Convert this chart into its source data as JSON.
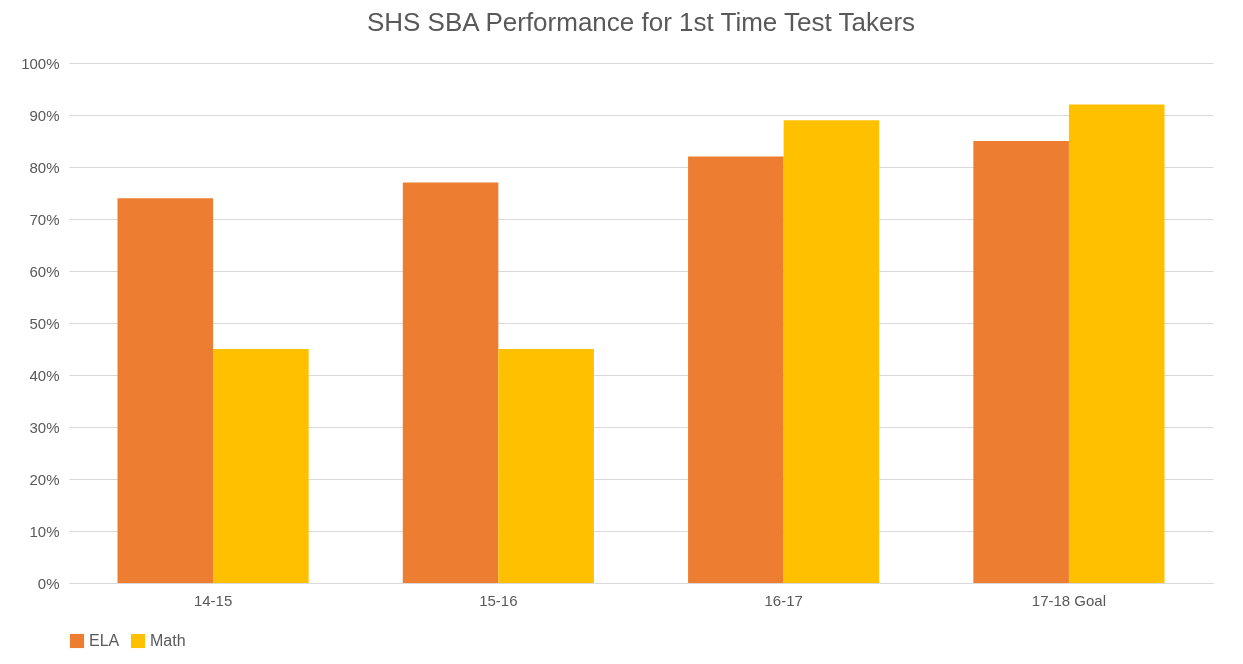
{
  "chart_data": {
    "type": "bar",
    "title": "SHS SBA Performance for 1st Time Test Takers",
    "categories": [
      "14-15",
      "15-16",
      "16-17",
      "17-18 Goal"
    ],
    "series": [
      {
        "name": "ELA",
        "color": "#ed7d31",
        "values": [
          74,
          77,
          82,
          85
        ]
      },
      {
        "name": "Math",
        "color": "#ffc000",
        "values": [
          45,
          45,
          89,
          92
        ]
      }
    ],
    "ylim": [
      0,
      100
    ],
    "yticks": [
      {
        "value": 0,
        "label": "0%"
      },
      {
        "value": 10,
        "label": "10%"
      },
      {
        "value": 20,
        "label": "20%"
      },
      {
        "value": 30,
        "label": "30%"
      },
      {
        "value": 40,
        "label": "40%"
      },
      {
        "value": 50,
        "label": "50%"
      },
      {
        "value": 60,
        "label": "60%"
      },
      {
        "value": 70,
        "label": "70%"
      },
      {
        "value": 80,
        "label": "80%"
      },
      {
        "value": 90,
        "label": "90%"
      },
      {
        "value": 100,
        "label": "100%"
      }
    ],
    "grid": "y",
    "legend": "bottom"
  }
}
